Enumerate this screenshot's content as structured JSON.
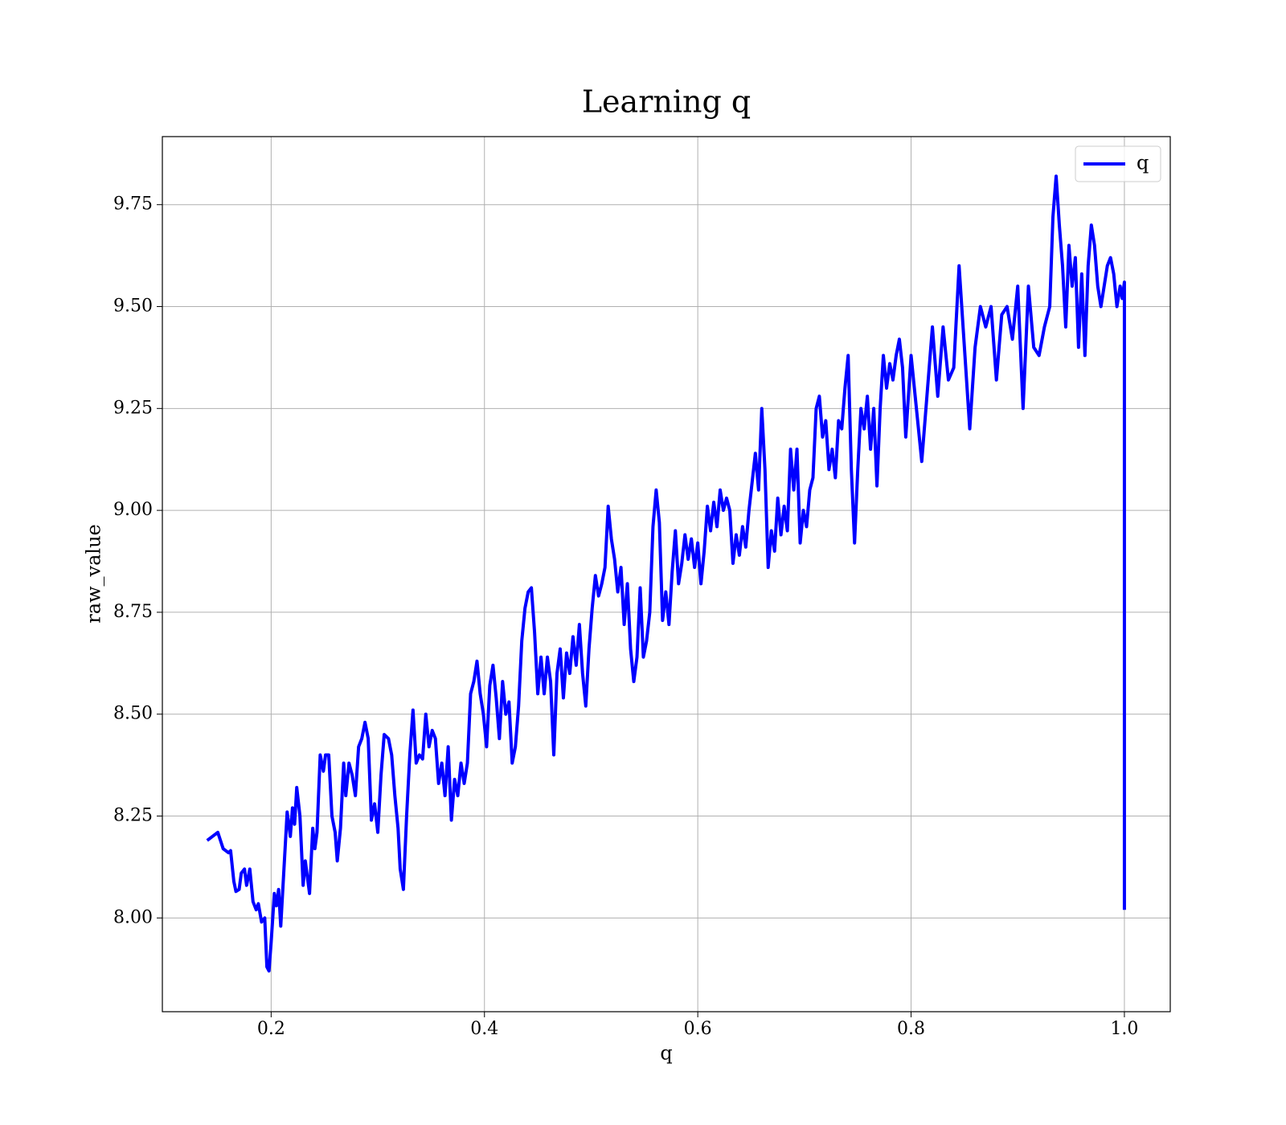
{
  "chart_data": {
    "type": "line",
    "title": "Learning q",
    "x_label": "q",
    "y_label": "raw_value",
    "xlim": [
      0.098,
      1.043
    ],
    "ylim": [
      7.77,
      9.917
    ],
    "xticks": [
      0.2,
      0.4,
      0.6,
      0.8,
      {
        "value": 1,
        "label": "1.0"
      }
    ],
    "yticks": [
      {
        "value": 8,
        "label": "8.00"
      },
      {
        "value": 8.25,
        "label": "8.25"
      },
      {
        "value": 8.5,
        "label": "8.50"
      },
      {
        "value": 8.75,
        "label": "8.75"
      },
      {
        "value": 9,
        "label": "9.00"
      },
      {
        "value": 9.25,
        "label": "9.25"
      },
      {
        "value": 9.5,
        "label": "9.50"
      },
      {
        "value": 9.75,
        "label": "9.75"
      }
    ],
    "grid": true,
    "legend": "upper right",
    "x": [
      0.14,
      0.15,
      0.155,
      0.16,
      0.162,
      0.165,
      0.167,
      0.17,
      0.172,
      0.175,
      0.177,
      0.18,
      0.183,
      0.186,
      0.188,
      0.191,
      0.194,
      0.196,
      0.198,
      0.2,
      0.203,
      0.205,
      0.207,
      0.209,
      0.212,
      0.215,
      0.218,
      0.22,
      0.222,
      0.224,
      0.227,
      0.23,
      0.232,
      0.234,
      0.236,
      0.239,
      0.241,
      0.243,
      0.246,
      0.249,
      0.251,
      0.254,
      0.257,
      0.26,
      0.262,
      0.265,
      0.268,
      0.27,
      0.273,
      0.276,
      0.279,
      0.282,
      0.285,
      0.288,
      0.291,
      0.294,
      0.297,
      0.3,
      0.303,
      0.306,
      0.31,
      0.313,
      0.316,
      0.319,
      0.321,
      0.324,
      0.327,
      0.33,
      0.333,
      0.336,
      0.339,
      0.342,
      0.345,
      0.348,
      0.351,
      0.354,
      0.357,
      0.36,
      0.363,
      0.366,
      0.369,
      0.372,
      0.375,
      0.378,
      0.381,
      0.384,
      0.387,
      0.39,
      0.393,
      0.396,
      0.399,
      0.402,
      0.405,
      0.408,
      0.411,
      0.414,
      0.417,
      0.42,
      0.423,
      0.426,
      0.429,
      0.432,
      0.435,
      0.438,
      0.441,
      0.444,
      0.447,
      0.45,
      0.453,
      0.456,
      0.459,
      0.462,
      0.465,
      0.468,
      0.471,
      0.474,
      0.477,
      0.48,
      0.483,
      0.486,
      0.489,
      0.492,
      0.495,
      0.498,
      0.501,
      0.504,
      0.507,
      0.51,
      0.513,
      0.516,
      0.519,
      0.522,
      0.525,
      0.528,
      0.531,
      0.534,
      0.537,
      0.54,
      0.543,
      0.546,
      0.549,
      0.552,
      0.555,
      0.558,
      0.561,
      0.564,
      0.567,
      0.57,
      0.573,
      0.576,
      0.579,
      0.582,
      0.585,
      0.588,
      0.591,
      0.594,
      0.597,
      0.6,
      0.603,
      0.606,
      0.609,
      0.612,
      0.615,
      0.618,
      0.621,
      0.624,
      0.627,
      0.63,
      0.633,
      0.636,
      0.639,
      0.642,
      0.645,
      0.648,
      0.651,
      0.654,
      0.657,
      0.66,
      0.663,
      0.666,
      0.669,
      0.672,
      0.675,
      0.678,
      0.681,
      0.684,
      0.687,
      0.69,
      0.693,
      0.696,
      0.699,
      0.702,
      0.705,
      0.708,
      0.711,
      0.714,
      0.717,
      0.72,
      0.723,
      0.726,
      0.729,
      0.732,
      0.735,
      0.738,
      0.741,
      0.744,
      0.747,
      0.75,
      0.753,
      0.756,
      0.759,
      0.762,
      0.765,
      0.768,
      0.771,
      0.774,
      0.777,
      0.78,
      0.783,
      0.786,
      0.789,
      0.792,
      0.795,
      0.798,
      0.8,
      0.81,
      0.82,
      0.825,
      0.83,
      0.835,
      0.84,
      0.845,
      0.85,
      0.855,
      0.86,
      0.865,
      0.87,
      0.875,
      0.88,
      0.885,
      0.89,
      0.895,
      0.9,
      0.905,
      0.91,
      0.915,
      0.92,
      0.925,
      0.93,
      0.933,
      0.936,
      0.939,
      0.942,
      0.945,
      0.948,
      0.951,
      0.954,
      0.957,
      0.96,
      0.963,
      0.966,
      0.969,
      0.972,
      0.975,
      0.978,
      0.981,
      0.984,
      0.987,
      0.99,
      0.993,
      0.996,
      0.998,
      1.0,
      1.0
    ],
    "series": [
      {
        "name": "q",
        "color": "#0000ff",
        "values": [
          8.19,
          8.21,
          8.17,
          8.16,
          8.165,
          8.09,
          8.065,
          8.07,
          8.11,
          8.12,
          8.08,
          8.12,
          8.04,
          8.02,
          8.035,
          7.99,
          8.0,
          7.88,
          7.87,
          7.94,
          8.06,
          8.03,
          8.07,
          7.98,
          8.12,
          8.26,
          8.2,
          8.27,
          8.23,
          8.32,
          8.25,
          8.08,
          8.14,
          8.1,
          8.06,
          8.22,
          8.17,
          8.21,
          8.4,
          8.36,
          8.4,
          8.4,
          8.25,
          8.21,
          8.14,
          8.22,
          8.38,
          8.3,
          8.38,
          8.35,
          8.3,
          8.42,
          8.44,
          8.48,
          8.44,
          8.24,
          8.28,
          8.21,
          8.35,
          8.45,
          8.44,
          8.4,
          8.3,
          8.22,
          8.12,
          8.07,
          8.25,
          8.4,
          8.51,
          8.38,
          8.4,
          8.39,
          8.5,
          8.42,
          8.46,
          8.44,
          8.33,
          8.38,
          8.3,
          8.42,
          8.24,
          8.34,
          8.3,
          8.38,
          8.33,
          8.38,
          8.55,
          8.58,
          8.63,
          8.55,
          8.5,
          8.42,
          8.57,
          8.62,
          8.54,
          8.44,
          8.58,
          8.5,
          8.53,
          8.38,
          8.42,
          8.52,
          8.68,
          8.76,
          8.8,
          8.81,
          8.7,
          8.55,
          8.64,
          8.55,
          8.64,
          8.58,
          8.4,
          8.6,
          8.66,
          8.54,
          8.65,
          8.6,
          8.69,
          8.62,
          8.72,
          8.6,
          8.52,
          8.66,
          8.76,
          8.84,
          8.79,
          8.82,
          8.86,
          9.01,
          8.93,
          8.88,
          8.8,
          8.86,
          8.72,
          8.82,
          8.66,
          8.58,
          8.64,
          8.81,
          8.64,
          8.68,
          8.75,
          8.96,
          9.05,
          8.97,
          8.73,
          8.8,
          8.72,
          8.85,
          8.95,
          8.82,
          8.87,
          8.94,
          8.88,
          8.93,
          8.86,
          8.92,
          8.82,
          8.9,
          9.01,
          8.95,
          9.02,
          8.96,
          9.05,
          9.0,
          9.03,
          9.0,
          8.87,
          8.94,
          8.89,
          8.96,
          8.91,
          9.0,
          9.07,
          9.14,
          9.05,
          9.25,
          9.1,
          8.86,
          8.95,
          8.9,
          9.03,
          8.94,
          9.01,
          8.95,
          9.15,
          9.05,
          9.15,
          8.92,
          9.0,
          8.96,
          9.05,
          9.08,
          9.25,
          9.28,
          9.18,
          9.22,
          9.1,
          9.15,
          9.08,
          9.22,
          9.2,
          9.3,
          9.38,
          9.1,
          8.92,
          9.1,
          9.25,
          9.2,
          9.28,
          9.15,
          9.25,
          9.06,
          9.25,
          9.38,
          9.3,
          9.36,
          9.32,
          9.38,
          9.42,
          9.35,
          9.18,
          9.3,
          9.38,
          9.12,
          9.45,
          9.28,
          9.45,
          9.32,
          9.35,
          9.6,
          9.4,
          9.2,
          9.4,
          9.5,
          9.45,
          9.5,
          9.32,
          9.48,
          9.5,
          9.42,
          9.55,
          9.25,
          9.55,
          9.4,
          9.38,
          9.45,
          9.5,
          9.72,
          9.82,
          9.7,
          9.6,
          9.45,
          9.65,
          9.55,
          9.62,
          9.4,
          9.58,
          9.38,
          9.6,
          9.7,
          9.65,
          9.55,
          9.5,
          9.55,
          9.6,
          9.62,
          9.58,
          9.5,
          9.55,
          9.52,
          9.56,
          8.02
        ]
      }
    ]
  }
}
